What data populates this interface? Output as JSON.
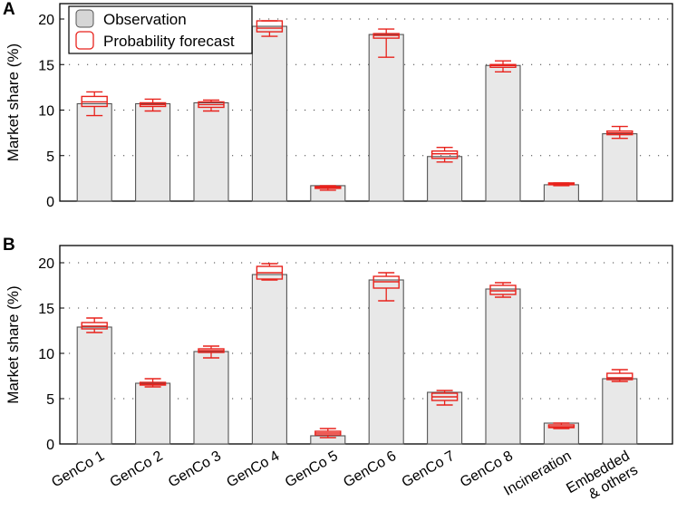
{
  "legend": {
    "observation": "Observation",
    "forecast": "Probability forecast"
  },
  "colors": {
    "bar_fill": "#e8e8e8",
    "bar_stroke": "#555555",
    "forecast": "#e8221c",
    "grid": "#444444"
  },
  "chart_data": [
    {
      "type": "bar",
      "panel": "A",
      "ylabel": "Market share (%)",
      "ylim": [
        0,
        21
      ],
      "yticks": [
        "0",
        "5",
        "10",
        "15",
        "20"
      ],
      "grid": "dotted horizontal at y = 5, 10, 15, 20",
      "legend_position": "top-left",
      "categories": [
        "GenCo 1",
        "GenCo 2",
        "GenCo 3",
        "GenCo 4",
        "GenCo 5",
        "GenCo 6",
        "GenCo 7",
        "GenCo 8",
        "Incineration",
        "Embedded & others"
      ],
      "series": [
        {
          "name": "Observation",
          "values": [
            10.7,
            10.7,
            10.8,
            19.2,
            1.7,
            18.3,
            4.9,
            14.9,
            1.8,
            7.4
          ]
        },
        {
          "name": "Probability forecast",
          "boxes": [
            {
              "min": 9.4,
              "q1": 10.4,
              "median": 10.9,
              "q3": 11.5,
              "max": 12.0
            },
            {
              "min": 9.9,
              "q1": 10.4,
              "median": 10.6,
              "q3": 10.8,
              "max": 11.2
            },
            {
              "min": 9.9,
              "q1": 10.3,
              "median": 10.6,
              "q3": 10.9,
              "max": 11.1
            },
            {
              "min": 18.1,
              "q1": 18.6,
              "median": 19.0,
              "q3": 19.8,
              "max": 19.8
            },
            {
              "min": 1.2,
              "q1": 1.4,
              "median": 1.5,
              "q3": 1.6,
              "max": 1.7
            },
            {
              "min": 15.8,
              "q1": 17.9,
              "median": 18.2,
              "q3": 18.4,
              "max": 18.9
            },
            {
              "min": 4.3,
              "q1": 4.7,
              "median": 5.2,
              "q3": 5.5,
              "max": 5.9
            },
            {
              "min": 14.2,
              "q1": 14.7,
              "median": 14.9,
              "q3": 15.0,
              "max": 15.4
            },
            {
              "min": 1.7,
              "q1": 1.8,
              "median": 1.9,
              "q3": 2.0,
              "max": 2.0
            },
            {
              "min": 6.9,
              "q1": 7.3,
              "median": 7.5,
              "q3": 7.7,
              "max": 8.2
            }
          ]
        }
      ]
    },
    {
      "type": "bar",
      "panel": "B",
      "ylabel": "Market share (%)",
      "ylim": [
        0,
        21
      ],
      "yticks": [
        "0",
        "5",
        "10",
        "15",
        "20"
      ],
      "grid": "dotted horizontal at y = 5, 10, 15, 20",
      "categories": [
        "GenCo 1",
        "GenCo 2",
        "GenCo 3",
        "GenCo 4",
        "GenCo 5",
        "GenCo 6",
        "GenCo 7",
        "GenCo 8",
        "Incineration",
        "Embedded & others"
      ],
      "series": [
        {
          "name": "Observation",
          "values": [
            12.9,
            6.7,
            10.2,
            18.7,
            0.9,
            18.1,
            5.7,
            17.1,
            2.3,
            7.2
          ]
        },
        {
          "name": "Probability forecast",
          "boxes": [
            {
              "min": 12.3,
              "q1": 12.7,
              "median": 13.0,
              "q3": 13.4,
              "max": 13.9
            },
            {
              "min": 6.3,
              "q1": 6.5,
              "median": 6.6,
              "q3": 6.8,
              "max": 7.2
            },
            {
              "min": 9.5,
              "q1": 10.1,
              "median": 10.3,
              "q3": 10.5,
              "max": 10.8
            },
            {
              "min": 18.1,
              "q1": 18.2,
              "median": 18.9,
              "q3": 19.6,
              "max": 19.9
            },
            {
              "min": 0.7,
              "q1": 1.0,
              "median": 1.2,
              "q3": 1.4,
              "max": 1.7
            },
            {
              "min": 15.8,
              "q1": 17.2,
              "median": 17.9,
              "q3": 18.5,
              "max": 18.9
            },
            {
              "min": 4.3,
              "q1": 4.8,
              "median": 5.2,
              "q3": 5.6,
              "max": 5.9
            },
            {
              "min": 16.2,
              "q1": 16.5,
              "median": 16.9,
              "q3": 17.5,
              "max": 17.8
            },
            {
              "min": 1.7,
              "q1": 1.8,
              "median": 1.9,
              "q3": 2.1,
              "max": 2.3
            },
            {
              "min": 6.9,
              "q1": 7.1,
              "median": 7.3,
              "q3": 7.8,
              "max": 8.2
            }
          ]
        }
      ]
    }
  ],
  "xaxis": {
    "labels": [
      [
        "GenCo 1"
      ],
      [
        "GenCo 2"
      ],
      [
        "GenCo 3"
      ],
      [
        "GenCo 4"
      ],
      [
        "GenCo 5"
      ],
      [
        "GenCo 6"
      ],
      [
        "GenCo 7"
      ],
      [
        "GenCo 8"
      ],
      [
        "Incineration"
      ],
      [
        "Embedded",
        "& others"
      ]
    ]
  }
}
